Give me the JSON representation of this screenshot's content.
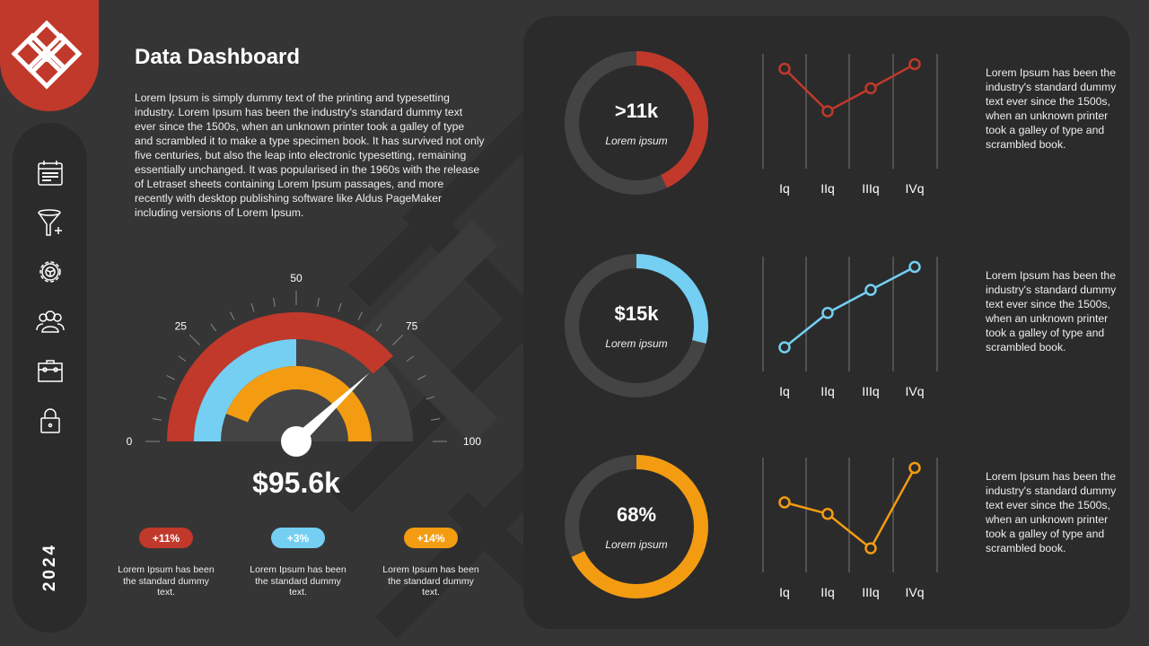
{
  "colors": {
    "red": "#c0392b",
    "blue": "#74cff2",
    "orange": "#f39c12",
    "panel": "#2b2b2b",
    "background": "#353535"
  },
  "sidebar": {
    "logo": "lattice-logo",
    "icons": [
      "calendar-icon",
      "filter-add-icon",
      "gear-icon",
      "users-icon",
      "toolbox-icon",
      "lock-icon"
    ],
    "year": "2024"
  },
  "header": {
    "title": "Data Dashboard",
    "intro": "Lorem Ipsum is simply dummy text of the printing and typesetting industry. Lorem Ipsum has been the industry's standard dummy text ever since the 1500s, when an unknown printer took a galley of type and scrambled it to make a type specimen book. It has survived not only five centuries, but also the leap into electronic typesetting, remaining essentially unchanged. It was popularised in the 1960s with the release of Letraset sheets containing Lorem Ipsum passages, and more recently with desktop publishing software like Aldus PageMaker including versions of Lorem Ipsum."
  },
  "gauge": {
    "tick_labels": [
      "0",
      "25",
      "50",
      "75",
      "100"
    ],
    "scale": [
      0,
      100
    ],
    "arcs": [
      {
        "color": "red",
        "from": 0,
        "to": 77
      },
      {
        "color": "blue",
        "from": 0,
        "to": 50
      },
      {
        "color": "orange",
        "from": 12,
        "to": 100
      }
    ],
    "needle": 76,
    "value": "$95.6k"
  },
  "stats": [
    {
      "badge": "+11%",
      "color": "red",
      "text": "Lorem Ipsum has been the standard dummy text."
    },
    {
      "badge": "+3%",
      "color": "blue",
      "text": "Lorem Ipsum has been the standard dummy text."
    },
    {
      "badge": "+14%",
      "color": "orange",
      "text": "Lorem Ipsum has been the standard dummy text."
    }
  ],
  "rows": [
    {
      "value": ">11k",
      "label": "Lorem ipsum",
      "color": "red",
      "fill": 0.43,
      "categories": [
        "Iq",
        "IIq",
        "IIIq",
        "IVq"
      ],
      "series": [
        87,
        50,
        70,
        91
      ],
      "text": "Lorem Ipsum has been the industry's standard dummy text ever since the 1500s, when an unknown printer took a galley of type and scrambled book."
    },
    {
      "value": "$15k",
      "label": "Lorem ipsum",
      "color": "blue",
      "fill": 0.29,
      "categories": [
        "Iq",
        "IIq",
        "IIIq",
        "IVq"
      ],
      "series": [
        21,
        51,
        71,
        91
      ],
      "text": "Lorem Ipsum has been the industry's standard dummy text ever since the 1500s, when an unknown printer took a galley of type and scrambled book."
    },
    {
      "value": "68%",
      "label": "Lorem ipsum",
      "color": "orange",
      "fill": 0.68,
      "categories": [
        "Iq",
        "IIq",
        "IIIq",
        "IVq"
      ],
      "series": [
        61,
        51,
        21,
        91
      ],
      "text": "Lorem Ipsum has been the industry's standard dummy text ever since the 1500s, when an unknown printer took a galley of type and scrambled book."
    }
  ]
}
